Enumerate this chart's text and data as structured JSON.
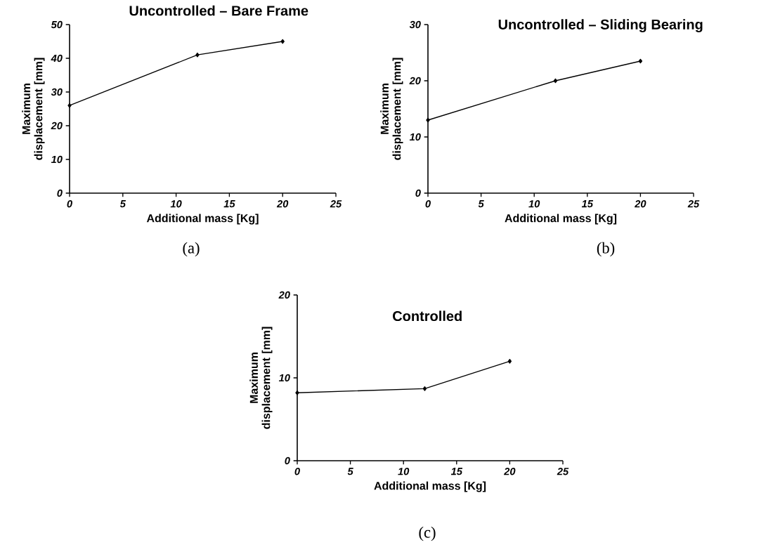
{
  "chart_data": [
    {
      "type": "line",
      "title": "Uncontrolled – Bare Frame",
      "xlabel": "Additional mass [Kg]",
      "ylabel": "Maximum displacement [mm]",
      "annotations": [
        "(a)"
      ],
      "x": [
        0,
        12,
        20
      ],
      "series": [
        {
          "color": "#000000",
          "values": [
            26,
            41,
            45
          ]
        }
      ],
      "xlim": [
        0,
        25
      ],
      "ylim": [
        0,
        50
      ],
      "xticks": [
        0,
        5,
        10,
        15,
        20,
        25
      ],
      "yticks": [
        0,
        10,
        20,
        30,
        40,
        50
      ],
      "marker": "diamond",
      "line_style": "solid"
    },
    {
      "type": "line",
      "title": "Uncontrolled – Sliding Bearing",
      "xlabel": "Additional mass [Kg]",
      "ylabel": "Maximum displacement [mm]",
      "annotations": [
        "(b)"
      ],
      "x": [
        0,
        12,
        20
      ],
      "series": [
        {
          "color": "#000000",
          "values": [
            13,
            20,
            23.5
          ]
        }
      ],
      "xlim": [
        0,
        25
      ],
      "ylim": [
        0,
        30
      ],
      "xticks": [
        0,
        5,
        10,
        15,
        20,
        25
      ],
      "yticks": [
        0,
        10,
        20,
        30
      ],
      "marker": "diamond",
      "line_style": "solid"
    },
    {
      "type": "line",
      "title": "Controlled",
      "xlabel": "Additional mass [Kg]",
      "ylabel": "Maximum displacement [mm]",
      "annotations": [
        "(c)"
      ],
      "x": [
        0,
        12,
        20
      ],
      "series": [
        {
          "color": "#000000",
          "values": [
            8.2,
            8.7,
            12
          ]
        }
      ],
      "xlim": [
        0,
        25
      ],
      "ylim": [
        0,
        20
      ],
      "xticks": [
        0,
        5,
        10,
        15,
        20,
        25
      ],
      "yticks": [
        0,
        10,
        20
      ],
      "marker": "diamond",
      "line_style": "solid"
    }
  ]
}
